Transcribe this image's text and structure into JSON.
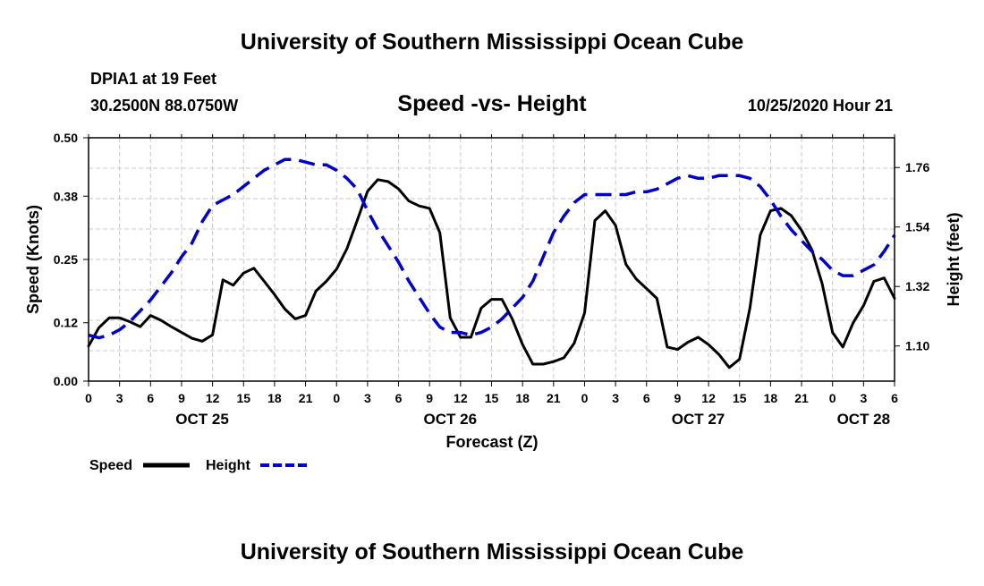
{
  "header": {
    "title": "University of Southern Mississippi Ocean Cube",
    "station": "DPIA1 at 19 Feet",
    "location": "30.2500N 88.0750W",
    "chart_title": "Speed -vs- Height",
    "datetime": "10/25/2020 Hour 21"
  },
  "footer": {
    "title": "University of Southern Mississippi Ocean Cube"
  },
  "legend": {
    "speed_label": "Speed",
    "height_label": "Height"
  },
  "colors": {
    "speed": "#000000",
    "height": "#0000cc",
    "grid": "#c8c8c8"
  },
  "chart_data": {
    "type": "line",
    "title": "Speed -vs- Height",
    "xlabel": "Forecast (Z)",
    "ylabel": "Speed (Knots)",
    "y2label": "Height (feet)",
    "xlim": [
      0,
      78
    ],
    "ylim": [
      0,
      0.5
    ],
    "y2lim": [
      0.97,
      1.87
    ],
    "y_ticks": [
      0.0,
      0.12,
      0.25,
      0.38,
      0.5
    ],
    "y_tick_labels": [
      "0.00",
      "0.12",
      "0.25",
      "0.38",
      "0.50"
    ],
    "y2_ticks": [
      1.1,
      1.32,
      1.54,
      1.76
    ],
    "y2_tick_labels": [
      "1.10",
      "1.32",
      "1.54",
      "1.76"
    ],
    "x_ticks": [
      0,
      3,
      6,
      9,
      12,
      15,
      18,
      21,
      24,
      27,
      30,
      33,
      36,
      39,
      42,
      45,
      48,
      51,
      54,
      57,
      60,
      63,
      66,
      69,
      72,
      75,
      78
    ],
    "x_tick_labels": [
      "0",
      "3",
      "6",
      "9",
      "12",
      "15",
      "18",
      "21",
      "0",
      "3",
      "6",
      "9",
      "12",
      "15",
      "18",
      "21",
      "0",
      "3",
      "6",
      "9",
      "12",
      "15",
      "18",
      "21",
      "0",
      "3",
      "6"
    ],
    "day_labels": [
      {
        "x": 11,
        "label": "OCT 25"
      },
      {
        "x": 35,
        "label": "OCT 26"
      },
      {
        "x": 59,
        "label": "OCT 27"
      },
      {
        "x": 75,
        "label": "OCT 28"
      }
    ],
    "series": [
      {
        "name": "Speed",
        "axis": "left",
        "color": "#000000",
        "dash": "solid",
        "x": [
          0,
          1,
          2,
          3,
          4,
          5,
          6,
          7,
          8,
          9,
          10,
          11,
          12,
          13,
          14,
          15,
          16,
          17,
          18,
          19,
          20,
          21,
          22,
          23,
          24,
          25,
          26,
          27,
          28,
          29,
          30,
          31,
          32,
          33,
          34,
          35,
          36,
          37,
          38,
          39,
          40,
          41,
          42,
          43,
          44,
          45,
          46,
          47,
          48,
          49,
          50,
          51,
          52,
          53,
          54,
          55,
          56,
          57,
          58,
          59,
          60,
          61,
          62,
          63,
          64,
          65,
          66,
          67,
          68,
          69,
          70,
          71,
          72,
          73,
          74,
          75,
          76,
          77,
          78
        ],
        "values": [
          0.072,
          0.11,
          0.13,
          0.13,
          0.122,
          0.112,
          0.135,
          0.125,
          0.112,
          0.1,
          0.088,
          0.082,
          0.095,
          0.208,
          0.197,
          0.222,
          0.232,
          0.205,
          0.178,
          0.148,
          0.128,
          0.135,
          0.185,
          0.205,
          0.23,
          0.272,
          0.33,
          0.39,
          0.414,
          0.41,
          0.395,
          0.37,
          0.36,
          0.355,
          0.305,
          0.13,
          0.09,
          0.09,
          0.15,
          0.168,
          0.168,
          0.128,
          0.075,
          0.035,
          0.035,
          0.04,
          0.048,
          0.078,
          0.14,
          0.33,
          0.35,
          0.32,
          0.24,
          0.21,
          0.19,
          0.17,
          0.07,
          0.065,
          0.08,
          0.09,
          0.075,
          0.055,
          0.028,
          0.045,
          0.15,
          0.3,
          0.35,
          0.355,
          0.34,
          0.31,
          0.27,
          0.2,
          0.1,
          0.07,
          0.12,
          0.155,
          0.205,
          0.212,
          0.17
        ]
      },
      {
        "name": "Height",
        "axis": "right",
        "color": "#0000cc",
        "dash": "dashed",
        "x": [
          0,
          1,
          2,
          3,
          4,
          5,
          6,
          7,
          8,
          9,
          10,
          11,
          12,
          13,
          14,
          15,
          16,
          17,
          18,
          19,
          20,
          21,
          22,
          23,
          24,
          25,
          26,
          27,
          28,
          29,
          30,
          31,
          32,
          33,
          34,
          35,
          36,
          37,
          38,
          39,
          40,
          41,
          42,
          43,
          44,
          45,
          46,
          47,
          48,
          49,
          50,
          51,
          52,
          53,
          54,
          55,
          56,
          57,
          58,
          59,
          60,
          61,
          62,
          63,
          64,
          65,
          66,
          67,
          68,
          69,
          70,
          71,
          72,
          73,
          74,
          75,
          76,
          77,
          78
        ],
        "values": [
          1.14,
          1.13,
          1.14,
          1.16,
          1.19,
          1.23,
          1.27,
          1.32,
          1.37,
          1.43,
          1.48,
          1.56,
          1.62,
          1.64,
          1.66,
          1.69,
          1.72,
          1.75,
          1.77,
          1.79,
          1.79,
          1.78,
          1.77,
          1.77,
          1.75,
          1.72,
          1.68,
          1.6,
          1.53,
          1.47,
          1.41,
          1.34,
          1.28,
          1.22,
          1.17,
          1.15,
          1.15,
          1.14,
          1.15,
          1.17,
          1.2,
          1.24,
          1.28,
          1.34,
          1.43,
          1.52,
          1.58,
          1.63,
          1.66,
          1.66,
          1.66,
          1.66,
          1.66,
          1.67,
          1.67,
          1.68,
          1.7,
          1.72,
          1.73,
          1.72,
          1.72,
          1.73,
          1.73,
          1.73,
          1.72,
          1.69,
          1.64,
          1.58,
          1.53,
          1.49,
          1.45,
          1.42,
          1.38,
          1.36,
          1.36,
          1.38,
          1.4,
          1.45,
          1.51
        ]
      }
    ]
  }
}
